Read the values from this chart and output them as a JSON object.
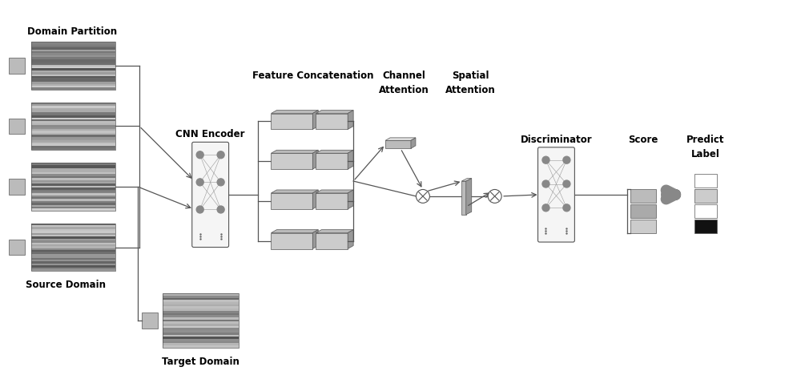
{
  "bg_color": "#ffffff",
  "label_domain_partition": "Domain Partition",
  "label_source_domain": "Source Domain",
  "label_target_domain": "Target Domain",
  "label_cnn_encoder": "CNN Encoder",
  "label_feature_concat": "Feature Concatenation",
  "label_channel_attention_line1": "Channel",
  "label_channel_attention_line2": "Attention",
  "label_spatial_attention_line1": "Spatial",
  "label_spatial_attention_line2": "Attention",
  "label_discriminator": "Discriminator",
  "label_score": "Score",
  "label_predict_line1": "Predict",
  "label_predict_line2": "Label",
  "edge_color": "#555555",
  "neuron_color": "#888888",
  "arrow_color": "#555555",
  "box_light": "#cccccc",
  "box_mid": "#aaaaaa",
  "box_dark": "#888888"
}
